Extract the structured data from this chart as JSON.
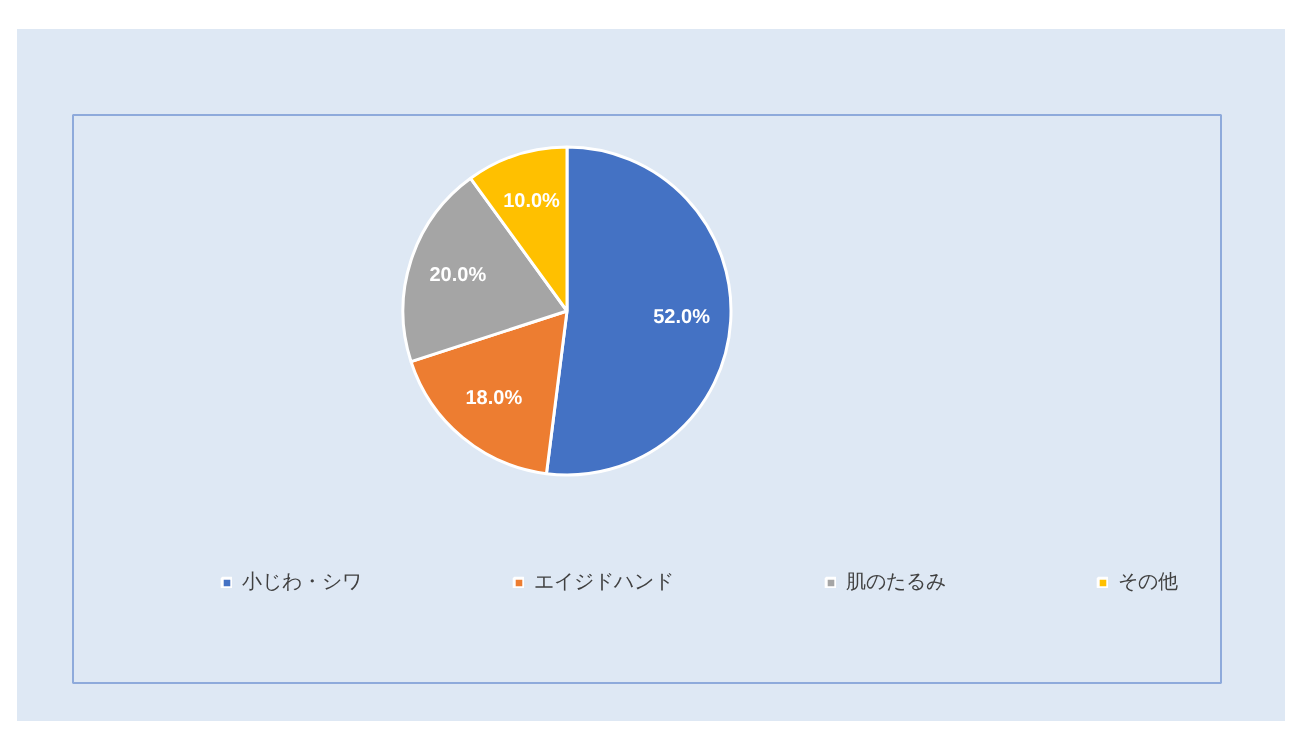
{
  "chart_data": {
    "type": "pie",
    "categories": [
      "小じわ・シワ",
      "エイジドハンド",
      "肌のたるみ",
      "その他"
    ],
    "values": [
      52,
      18,
      20,
      10
    ],
    "colors": [
      "#4472c4",
      "#ed7d31",
      "#a5a5a5",
      "#ffc000"
    ],
    "value_labels": [
      "52.0%",
      "18.0%",
      "20.0%",
      "10.0%"
    ],
    "legend": "bottom"
  }
}
